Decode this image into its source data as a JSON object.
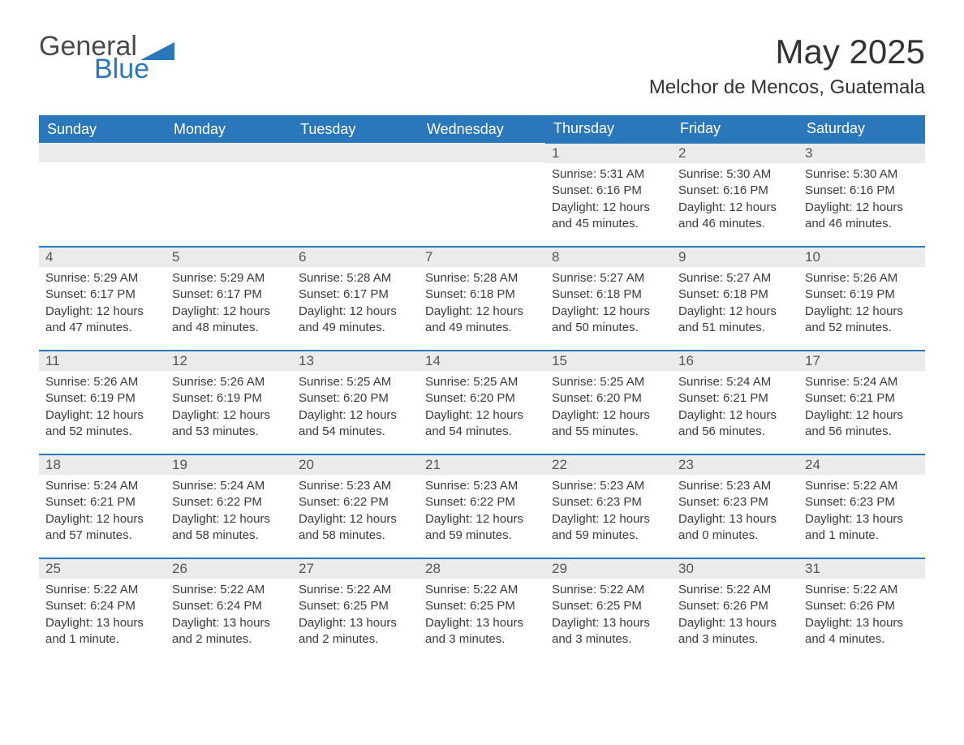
{
  "brand": {
    "word1": "General",
    "word2": "Blue",
    "tri_color": "#2b77bb"
  },
  "header": {
    "title": "May 2025",
    "location": "Melchor de Mencos, Guatemala"
  },
  "colors": {
    "header_bg": "#2b77bb",
    "header_text": "#ffffff",
    "daynum_bg": "#ebebeb",
    "body_text": "#3a3a3a",
    "row_divider": "#2b77bb",
    "page_bg": "#ffffff"
  },
  "typography": {
    "title_fontsize_pt": 32,
    "location_fontsize_pt": 18,
    "weekday_fontsize_pt": 14,
    "daynum_fontsize_pt": 13,
    "cell_fontsize_pt": 11
  },
  "calendar": {
    "type": "table",
    "columns": [
      "Sunday",
      "Monday",
      "Tuesday",
      "Wednesday",
      "Thursday",
      "Friday",
      "Saturday"
    ],
    "first_weekday_index": 4,
    "days": [
      {
        "n": "1",
        "sunrise": "5:31 AM",
        "sunset": "6:16 PM",
        "daylight": "12 hours and 45 minutes."
      },
      {
        "n": "2",
        "sunrise": "5:30 AM",
        "sunset": "6:16 PM",
        "daylight": "12 hours and 46 minutes."
      },
      {
        "n": "3",
        "sunrise": "5:30 AM",
        "sunset": "6:16 PM",
        "daylight": "12 hours and 46 minutes."
      },
      {
        "n": "4",
        "sunrise": "5:29 AM",
        "sunset": "6:17 PM",
        "daylight": "12 hours and 47 minutes."
      },
      {
        "n": "5",
        "sunrise": "5:29 AM",
        "sunset": "6:17 PM",
        "daylight": "12 hours and 48 minutes."
      },
      {
        "n": "6",
        "sunrise": "5:28 AM",
        "sunset": "6:17 PM",
        "daylight": "12 hours and 49 minutes."
      },
      {
        "n": "7",
        "sunrise": "5:28 AM",
        "sunset": "6:18 PM",
        "daylight": "12 hours and 49 minutes."
      },
      {
        "n": "8",
        "sunrise": "5:27 AM",
        "sunset": "6:18 PM",
        "daylight": "12 hours and 50 minutes."
      },
      {
        "n": "9",
        "sunrise": "5:27 AM",
        "sunset": "6:18 PM",
        "daylight": "12 hours and 51 minutes."
      },
      {
        "n": "10",
        "sunrise": "5:26 AM",
        "sunset": "6:19 PM",
        "daylight": "12 hours and 52 minutes."
      },
      {
        "n": "11",
        "sunrise": "5:26 AM",
        "sunset": "6:19 PM",
        "daylight": "12 hours and 52 minutes."
      },
      {
        "n": "12",
        "sunrise": "5:26 AM",
        "sunset": "6:19 PM",
        "daylight": "12 hours and 53 minutes."
      },
      {
        "n": "13",
        "sunrise": "5:25 AM",
        "sunset": "6:20 PM",
        "daylight": "12 hours and 54 minutes."
      },
      {
        "n": "14",
        "sunrise": "5:25 AM",
        "sunset": "6:20 PM",
        "daylight": "12 hours and 54 minutes."
      },
      {
        "n": "15",
        "sunrise": "5:25 AM",
        "sunset": "6:20 PM",
        "daylight": "12 hours and 55 minutes."
      },
      {
        "n": "16",
        "sunrise": "5:24 AM",
        "sunset": "6:21 PM",
        "daylight": "12 hours and 56 minutes."
      },
      {
        "n": "17",
        "sunrise": "5:24 AM",
        "sunset": "6:21 PM",
        "daylight": "12 hours and 56 minutes."
      },
      {
        "n": "18",
        "sunrise": "5:24 AM",
        "sunset": "6:21 PM",
        "daylight": "12 hours and 57 minutes."
      },
      {
        "n": "19",
        "sunrise": "5:24 AM",
        "sunset": "6:22 PM",
        "daylight": "12 hours and 58 minutes."
      },
      {
        "n": "20",
        "sunrise": "5:23 AM",
        "sunset": "6:22 PM",
        "daylight": "12 hours and 58 minutes."
      },
      {
        "n": "21",
        "sunrise": "5:23 AM",
        "sunset": "6:22 PM",
        "daylight": "12 hours and 59 minutes."
      },
      {
        "n": "22",
        "sunrise": "5:23 AM",
        "sunset": "6:23 PM",
        "daylight": "12 hours and 59 minutes."
      },
      {
        "n": "23",
        "sunrise": "5:23 AM",
        "sunset": "6:23 PM",
        "daylight": "13 hours and 0 minutes."
      },
      {
        "n": "24",
        "sunrise": "5:22 AM",
        "sunset": "6:23 PM",
        "daylight": "13 hours and 1 minute."
      },
      {
        "n": "25",
        "sunrise": "5:22 AM",
        "sunset": "6:24 PM",
        "daylight": "13 hours and 1 minute."
      },
      {
        "n": "26",
        "sunrise": "5:22 AM",
        "sunset": "6:24 PM",
        "daylight": "13 hours and 2 minutes."
      },
      {
        "n": "27",
        "sunrise": "5:22 AM",
        "sunset": "6:25 PM",
        "daylight": "13 hours and 2 minutes."
      },
      {
        "n": "28",
        "sunrise": "5:22 AM",
        "sunset": "6:25 PM",
        "daylight": "13 hours and 3 minutes."
      },
      {
        "n": "29",
        "sunrise": "5:22 AM",
        "sunset": "6:25 PM",
        "daylight": "13 hours and 3 minutes."
      },
      {
        "n": "30",
        "sunrise": "5:22 AM",
        "sunset": "6:26 PM",
        "daylight": "13 hours and 3 minutes."
      },
      {
        "n": "31",
        "sunrise": "5:22 AM",
        "sunset": "6:26 PM",
        "daylight": "13 hours and 4 minutes."
      }
    ],
    "labels": {
      "sunrise": "Sunrise:",
      "sunset": "Sunset:",
      "daylight": "Daylight:"
    }
  }
}
